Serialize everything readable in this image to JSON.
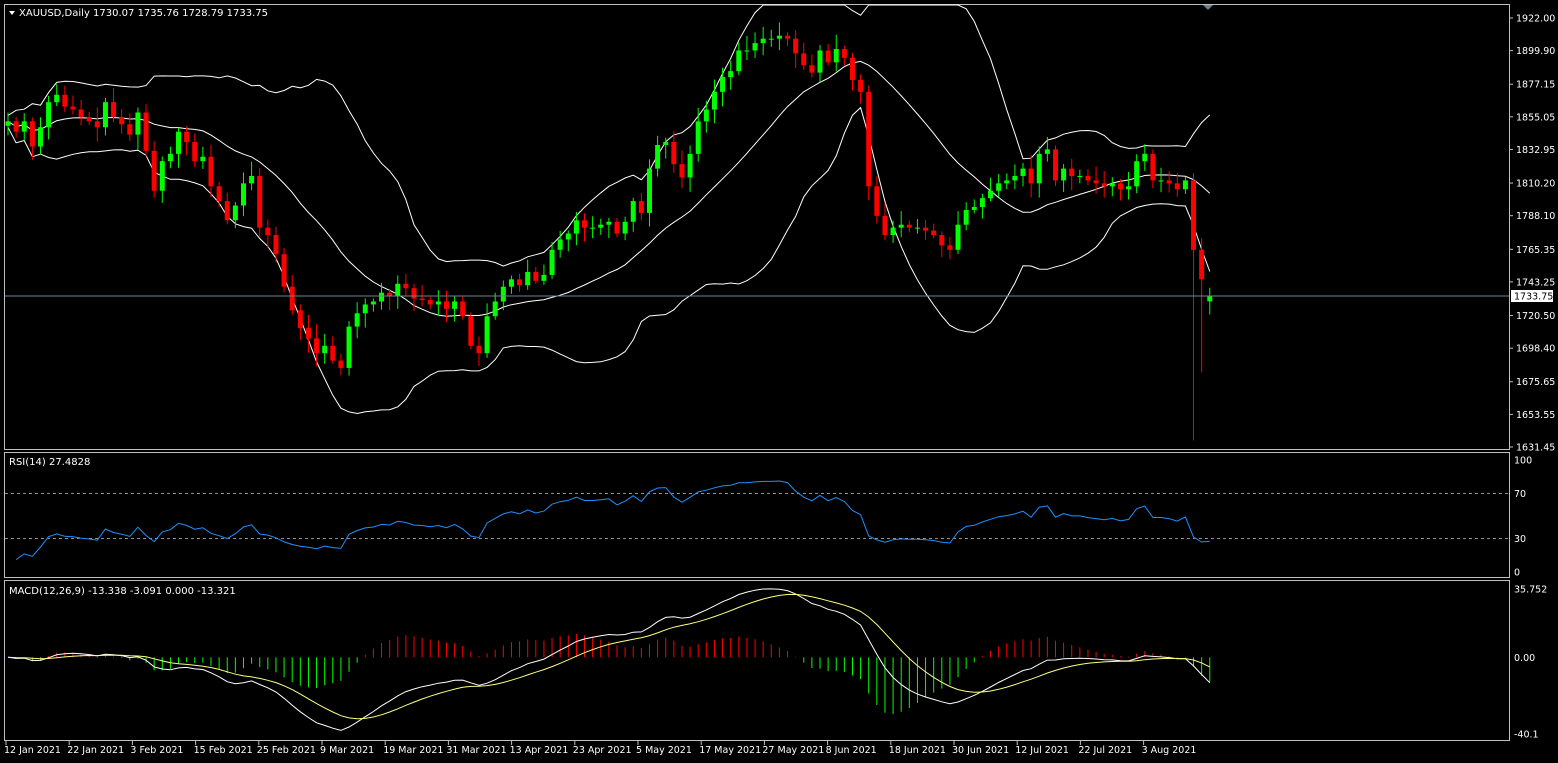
{
  "header": {
    "symbol_line": "XAUUSD,Daily  1730.07 1735.76 1728.79 1733.75"
  },
  "colors": {
    "background": "#000000",
    "bull": "#00ff00",
    "bear": "#ff0000",
    "bands": "#ffffff",
    "rsi_line": "#1e90ff",
    "macd_hist_up": "#ff0000",
    "macd_hist_down": "#00ff00",
    "macd_signal": "#ffff80",
    "price_line": "#708090"
  },
  "price_axis": {
    "ticks": [
      "1922.00",
      "1899.90",
      "1877.15",
      "1855.05",
      "1832.95",
      "1810.20",
      "1788.10",
      "1765.35",
      "1743.25",
      "1720.50",
      "1698.40",
      "1675.65",
      "1653.55",
      "1631.45"
    ],
    "current_price": "1733.75"
  },
  "rsi": {
    "title": "RSI(14) 27.4828",
    "ticks": [
      "100",
      "70",
      "30",
      "0"
    ]
  },
  "macd": {
    "title": "MACD(12,26,9) -13.338 -3.091 0.000 -13.321",
    "ticks": [
      "35.752",
      "0.00",
      "-40.1"
    ]
  },
  "time_axis": {
    "labels": [
      "12 Jan 2021",
      "22 Jan 2021",
      "3 Feb 2021",
      "15 Feb 2021",
      "25 Feb 2021",
      "9 Mar 2021",
      "19 Mar 2021",
      "31 Mar 2021",
      "13 Apr 2021",
      "23 Apr 2021",
      "5 May 2021",
      "17 May 2021",
      "27 May 2021",
      "8 Jun 2021",
      "18 Jun 2021",
      "30 Jun 2021",
      "12 Jul 2021",
      "22 Jul 2021",
      "3 Aug 2021"
    ]
  },
  "chart_data": {
    "type": "candlestick",
    "symbol": "XAUUSD",
    "timeframe": "Daily",
    "last_ohlc": {
      "open": 1730.07,
      "high": 1735.76,
      "low": 1728.79,
      "close": 1733.75
    },
    "ylim": [
      1631.45,
      1930.0
    ],
    "closes": [
      1852,
      1845,
      1852,
      1835,
      1848,
      1865,
      1870,
      1862,
      1860,
      1855,
      1852,
      1848,
      1865,
      1855,
      1850,
      1843,
      1858,
      1832,
      1805,
      1825,
      1830,
      1845,
      1838,
      1825,
      1828,
      1808,
      1798,
      1785,
      1795,
      1810,
      1815,
      1780,
      1775,
      1762,
      1740,
      1724,
      1712,
      1705,
      1695,
      1700,
      1690,
      1685,
      1713,
      1722,
      1728,
      1730,
      1736,
      1734,
      1742,
      1739,
      1732,
      1731,
      1728,
      1730,
      1725,
      1730,
      1720,
      1700,
      1695,
      1720,
      1730,
      1740,
      1745,
      1741,
      1750,
      1744,
      1748,
      1765,
      1772,
      1776,
      1785,
      1780,
      1780,
      1782,
      1784,
      1776,
      1784,
      1798,
      1790,
      1820,
      1836,
      1838,
      1823,
      1814,
      1830,
      1852,
      1860,
      1872,
      1882,
      1886,
      1900,
      1900,
      1905,
      1908,
      1908,
      1910,
      1908,
      1898,
      1890,
      1885,
      1900,
      1892,
      1901,
      1895,
      1880,
      1872,
      1808,
      1788,
      1775,
      1780,
      1782,
      1780,
      1780,
      1778,
      1775,
      1768,
      1765,
      1782,
      1792,
      1794,
      1800,
      1805,
      1810,
      1812,
      1815,
      1820,
      1810,
      1830,
      1833,
      1812,
      1820,
      1815,
      1815,
      1812,
      1810,
      1808,
      1810,
      1806,
      1808,
      1825,
      1830,
      1812,
      1812,
      1810,
      1806,
      1812,
      1765,
      1745,
      1733.75
    ],
    "bollinger_20_2": "upper / middle / lower bands drawn",
    "rsi_14": {
      "last": 27.4828,
      "levels": [
        30,
        70
      ],
      "ylim": [
        0,
        100
      ]
    },
    "macd_12_26_9": {
      "main": -13.338,
      "signal": -3.091,
      "histogram": 0.0,
      "extra": -13.321,
      "ylim": [
        -40.1,
        35.752
      ]
    }
  }
}
